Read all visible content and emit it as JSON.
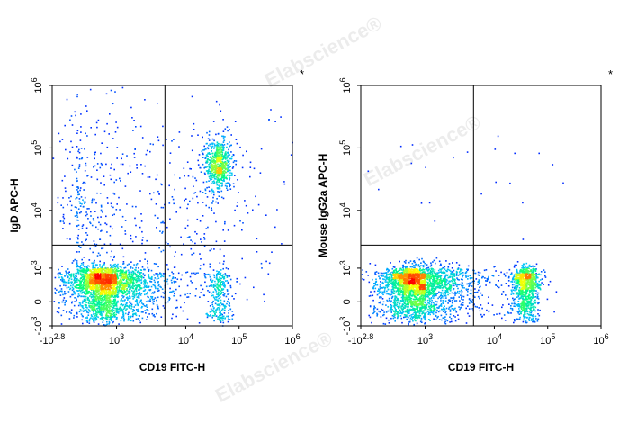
{
  "watermark": "Elabscience®",
  "chart_data": [
    {
      "type": "scatter",
      "style": "flow-cytometry density dot plot (pseudocolor)",
      "xlabel": "CD19 FITC-H",
      "ylabel": "IgD APC-H",
      "marker": "*",
      "x_scale": "biexponential",
      "y_scale": "biexponential",
      "xlim": [
        -631,
        1000000
      ],
      "ylim": [
        -1000,
        1000000
      ],
      "x_ticks": [
        {
          "value": -631,
          "base": "-10",
          "exp": "2.8"
        },
        {
          "value": 1000,
          "base": "10",
          "exp": "3"
        },
        {
          "value": 10000,
          "base": "10",
          "exp": "4"
        },
        {
          "value": 100000,
          "base": "10",
          "exp": "5"
        },
        {
          "value": 1000000,
          "base": "10",
          "exp": "6"
        }
      ],
      "y_ticks": [
        {
          "value": -1000,
          "base": "-10",
          "exp": "3"
        },
        {
          "value": 0,
          "base": "0",
          "exp": ""
        },
        {
          "value": 1000,
          "base": "10",
          "exp": "3"
        },
        {
          "value": 10000,
          "base": "10",
          "exp": "4"
        },
        {
          "value": 100000,
          "base": "10",
          "exp": "5"
        },
        {
          "value": 1000000,
          "base": "10",
          "exp": "6"
        }
      ],
      "quadrant_gate": {
        "x": 5000,
        "y": 2500
      },
      "colormap": [
        "#0000ff",
        "#00bfff",
        "#00ff80",
        "#ffff00",
        "#ff0000"
      ],
      "populations": [
        {
          "cx": 600,
          "cy": 300,
          "sx": 0.28,
          "sy": 0.3,
          "n": 2600
        },
        {
          "cx": 40000,
          "cy": 55000,
          "sx": 0.12,
          "sy": 0.22,
          "n": 650
        },
        {
          "cx": 40000,
          "cy": 150,
          "sx": 0.12,
          "sy": 0.3,
          "n": 300
        },
        {
          "cx": 1200,
          "cy": 8000,
          "sx": 0.9,
          "sy": 1.0,
          "n": 750
        }
      ]
    },
    {
      "type": "scatter",
      "style": "flow-cytometry density dot plot (pseudocolor)",
      "xlabel": "CD19 FITC-H",
      "ylabel": "Mouse IgG2a APC-H",
      "marker": "*",
      "x_scale": "biexponential",
      "y_scale": "biexponential",
      "xlim": [
        -631,
        1000000
      ],
      "ylim": [
        -1000,
        1000000
      ],
      "x_ticks": [
        {
          "value": -631,
          "base": "-10",
          "exp": "2.8"
        },
        {
          "value": 1000,
          "base": "10",
          "exp": "3"
        },
        {
          "value": 10000,
          "base": "10",
          "exp": "4"
        },
        {
          "value": 100000,
          "base": "10",
          "exp": "5"
        },
        {
          "value": 1000000,
          "base": "10",
          "exp": "6"
        }
      ],
      "y_ticks": [
        {
          "value": -1000,
          "base": "-10",
          "exp": "3"
        },
        {
          "value": 0,
          "base": "0",
          "exp": ""
        },
        {
          "value": 1000,
          "base": "10",
          "exp": "3"
        },
        {
          "value": 10000,
          "base": "10",
          "exp": "4"
        },
        {
          "value": 100000,
          "base": "10",
          "exp": "5"
        },
        {
          "value": 1000000,
          "base": "10",
          "exp": "6"
        }
      ],
      "quadrant_gate": {
        "x": 5000,
        "y": 2500
      },
      "colormap": [
        "#0000ff",
        "#00bfff",
        "#00ff80",
        "#ffff00",
        "#ff0000"
      ],
      "populations": [
        {
          "cx": 600,
          "cy": 300,
          "sx": 0.28,
          "sy": 0.25,
          "n": 2600
        },
        {
          "cx": 38000,
          "cy": 300,
          "sx": 0.13,
          "sy": 0.28,
          "n": 950
        },
        {
          "cx": 4000,
          "cy": 400,
          "sx": 0.45,
          "sy": 0.3,
          "n": 120
        },
        {
          "cx": 3000,
          "cy": 30000,
          "sx": 0.8,
          "sy": 0.6,
          "n": 25
        }
      ]
    }
  ]
}
